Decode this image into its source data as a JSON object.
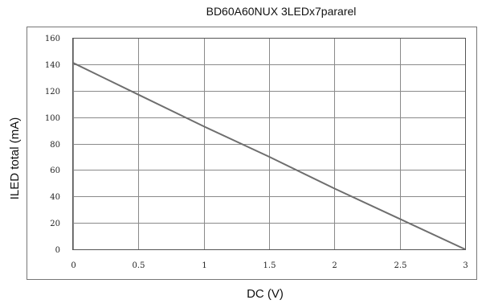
{
  "chart_data": {
    "type": "line",
    "title": "BD60A60NUX 3LEDx7pararel",
    "xlabel": "DC (V)",
    "ylabel": "ILED total (mA)",
    "xlim": [
      0,
      3
    ],
    "ylim": [
      0,
      160
    ],
    "x_ticks": [
      "0",
      "0.5",
      "1",
      "1.5",
      "2",
      "2.5",
      "3"
    ],
    "y_ticks": [
      "0",
      "20",
      "40",
      "60",
      "80",
      "100",
      "120",
      "140",
      "160"
    ],
    "grid": true,
    "legend": "none",
    "series": [
      {
        "x": [
          0,
          0.5,
          1,
          1.5,
          2,
          2.5,
          3
        ],
        "y": [
          141,
          117,
          93,
          70,
          46,
          23,
          0
        ]
      }
    ],
    "line_color": "#6e6e6e"
  }
}
